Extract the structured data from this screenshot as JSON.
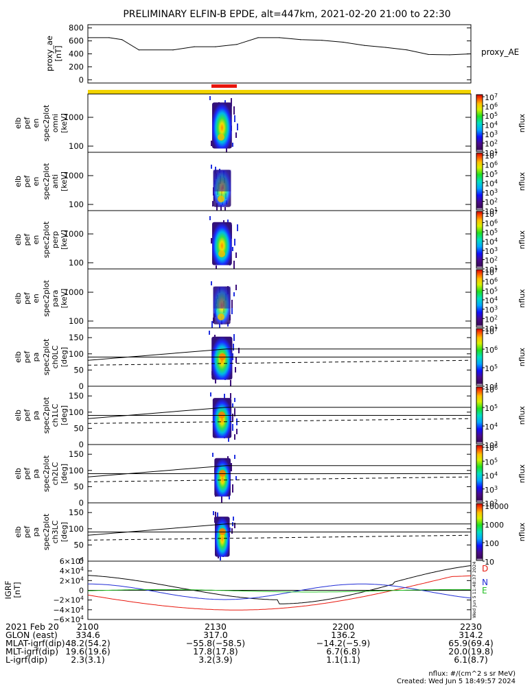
{
  "title": "PRELIMINARY ELFIN-B EPDE, alt=447km, 2021-02-20 21:00 to 22:30",
  "chart_data": [
    {
      "type": "line",
      "ylabel": [
        "proxy_ae",
        "[nT]"
      ],
      "legend": "proxy_AE",
      "yticks": [
        "800",
        "600",
        "400",
        "200",
        "0"
      ],
      "ylim": [
        -50,
        850
      ],
      "series": [
        {
          "name": "proxy_AE",
          "x": [
            "21:00",
            "21:05",
            "21:08",
            "21:12",
            "21:20",
            "21:25",
            "21:30",
            "21:35",
            "21:40",
            "21:45",
            "21:50",
            "21:55",
            "22:00",
            "22:05",
            "22:10",
            "22:15",
            "22:20",
            "22:25",
            "22:30"
          ],
          "values": [
            650,
            650,
            620,
            460,
            460,
            510,
            510,
            545,
            650,
            650,
            620,
            610,
            580,
            530,
            500,
            460,
            390,
            385,
            400
          ]
        }
      ]
    },
    {
      "type": "heatmap",
      "ylabel": [
        "elb",
        "pef",
        "en",
        "spec2plot",
        "omni",
        "[keV]"
      ],
      "yticks": [
        "1000",
        "100"
      ],
      "colorbar": {
        "ticks": [
          "10^7",
          "10^6",
          "10^5",
          "10^4",
          "10^3",
          "10^2",
          "10^1"
        ],
        "label": "nflux"
      },
      "peak_time": "21:32"
    },
    {
      "type": "heatmap",
      "ylabel": [
        "elb",
        "pef",
        "en",
        "spec2plot",
        "anti",
        "[keV]"
      ],
      "yticks": [
        "1000",
        "100"
      ],
      "colorbar": {
        "ticks": [
          "10^7",
          "10^6",
          "10^5",
          "10^4",
          "10^3",
          "10^2",
          "10^1"
        ],
        "label": "nflux"
      },
      "peak_time": "21:32"
    },
    {
      "type": "heatmap",
      "ylabel": [
        "elb",
        "pef",
        "en",
        "spec2plot",
        "perp",
        "[keV]"
      ],
      "yticks": [
        "1000",
        "100"
      ],
      "colorbar": {
        "ticks": [
          "10^7",
          "10^6",
          "10^5",
          "10^4",
          "10^3",
          "10^2",
          "10^1"
        ],
        "label": "nflux"
      },
      "peak_time": "21:32"
    },
    {
      "type": "heatmap",
      "ylabel": [
        "elb",
        "pef",
        "en",
        "spec2plot",
        "para",
        "[keV]"
      ],
      "yticks": [
        "1000",
        "100"
      ],
      "colorbar": {
        "ticks": [
          "10^7",
          "10^6",
          "10^5",
          "10^4",
          "10^3",
          "10^2",
          "10^1"
        ],
        "label": "nflux"
      },
      "peak_time": "21:32"
    },
    {
      "type": "heatmap",
      "ylabel": [
        "elb",
        "pef",
        "pa",
        "spec2plot",
        "ch0LC",
        "[deg]"
      ],
      "yticks": [
        "150",
        "100",
        "50",
        "0"
      ],
      "ylim": [
        0,
        180
      ],
      "colorbar": {
        "ticks": [
          "10^7",
          "10^6",
          "10^5",
          "10^4"
        ],
        "label": "nflux"
      }
    },
    {
      "type": "heatmap",
      "ylabel": [
        "elb",
        "pef",
        "pa",
        "spec2plot",
        "ch1LC",
        "[deg]"
      ],
      "yticks": [
        "150",
        "100",
        "50",
        "0"
      ],
      "ylim": [
        0,
        180
      ],
      "colorbar": {
        "ticks": [
          "10^6",
          "10^5",
          "10^4",
          "10^3"
        ],
        "label": "nflux"
      }
    },
    {
      "type": "heatmap",
      "ylabel": [
        "elb",
        "pef",
        "pa",
        "spec2plot",
        "ch2LC",
        "[deg]"
      ],
      "yticks": [
        "150",
        "100",
        "50",
        "0"
      ],
      "ylim": [
        0,
        180
      ],
      "colorbar": {
        "ticks": [
          "10^6",
          "10^5",
          "10^4",
          "10^3",
          "10^2"
        ],
        "label": "nflux"
      }
    },
    {
      "type": "heatmap",
      "ylabel": [
        "elb",
        "pef",
        "pa",
        "spec2plot",
        "ch3LC",
        "[deg]"
      ],
      "yticks": [
        "150",
        "100",
        "50",
        "0"
      ],
      "ylim": [
        0,
        180
      ],
      "colorbar": {
        "ticks": [
          "10000",
          "1000",
          "100",
          "10"
        ],
        "label": "nflux"
      }
    },
    {
      "type": "line",
      "ylabel": [
        "IGRF",
        "[nT]"
      ],
      "yticks": [
        "6×10^4",
        "4×10^4",
        "2×10^4",
        "0",
        "−2×10^4",
        "−4×10^4",
        "−6×10^4"
      ],
      "ylim": [
        -60000,
        60000
      ],
      "legend_letters": [
        "D",
        "N",
        "E"
      ],
      "series_colors": {
        "D": "#e8160c",
        "N": "#1f2bd6",
        "E": "#1fbf1f",
        "total": "#000000"
      },
      "side_stamp": "Wed Jun  5 11:48:37 2024"
    }
  ],
  "colors": {
    "sci_zone": "#f2d400",
    "overlay_bar": "#e8160c"
  },
  "footer": {
    "row_labels": [
      "2021 Feb 20",
      "GLON (east)",
      "MLAT-igrf(dip)",
      "MLT-igrf(dip)",
      "L-igrf(dip)"
    ],
    "time_ticks": [
      "2100",
      "2130",
      "2200",
      "2230"
    ],
    "columns": [
      [
        "334.6",
        "317.0",
        "136.2",
        "314.2"
      ],
      [
        "48.2(54.2)",
        "−55.8(−58.5)",
        "−14.2(−5.9)",
        "65.9(69.4)"
      ],
      [
        "19.6(19.6)",
        "17.8(17.8)",
        "6.7(6.8)",
        "20.0(19.8)"
      ],
      [
        "2.3(3.1)",
        "3.2(3.9)",
        "1.1(1.1)",
        "6.1(8.7)"
      ]
    ],
    "unit_note": "nflux: #/(cm^2 s sr MeV)",
    "created": "Created: Wed Jun  5 18:49:57 2024"
  }
}
